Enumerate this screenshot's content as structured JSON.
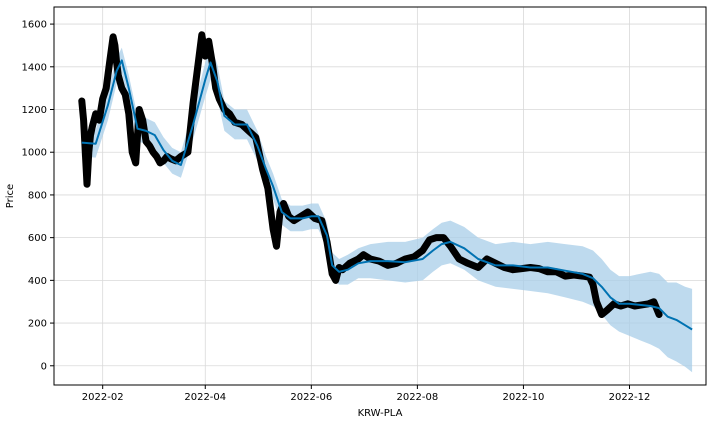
{
  "chart_data": {
    "type": "line",
    "xlabel": "KRW-PLA",
    "ylabel": "Price",
    "x_tick_labels": [
      "2022-02",
      "2022-04",
      "2022-06",
      "2022-08",
      "2022-10",
      "2022-12"
    ],
    "y_tick_labels": [
      "0",
      "200",
      "400",
      "600",
      "800",
      "1000",
      "1200",
      "1400",
      "1600"
    ],
    "xlim": [
      "2022-01-04",
      "2023-01-14"
    ],
    "ylim": [
      -90,
      1680
    ],
    "grid": true,
    "colors": {
      "observed": "#000000",
      "forecast_line": "#0072b2",
      "uncertainty_band": "#a8cde8",
      "grid": "#d9d9d9"
    },
    "observed": {
      "x": [
        "2022-01-20",
        "2022-01-21",
        "2022-01-22",
        "2022-01-23",
        "2022-01-24",
        "2022-01-25",
        "2022-01-26",
        "2022-01-28",
        "2022-01-30",
        "2022-02-01",
        "2022-02-03",
        "2022-02-05",
        "2022-02-07",
        "2022-02-08",
        "2022-02-09",
        "2022-02-10",
        "2022-02-12",
        "2022-02-14",
        "2022-02-16",
        "2022-02-18",
        "2022-02-20",
        "2022-02-22",
        "2022-02-24",
        "2022-02-26",
        "2022-02-28",
        "2022-03-02",
        "2022-03-04",
        "2022-03-06",
        "2022-03-08",
        "2022-03-10",
        "2022-03-12",
        "2022-03-15",
        "2022-03-18",
        "2022-03-22",
        "2022-03-25",
        "2022-03-28",
        "2022-03-30",
        "2022-04-01",
        "2022-04-03",
        "2022-04-05",
        "2022-04-07",
        "2022-04-09",
        "2022-04-12",
        "2022-04-15",
        "2022-04-18",
        "2022-04-22",
        "2022-04-26",
        "2022-04-30",
        "2022-05-04",
        "2022-05-07",
        "2022-05-10",
        "2022-05-12",
        "2022-05-14",
        "2022-05-16",
        "2022-05-19",
        "2022-05-22",
        "2022-05-26",
        "2022-05-30",
        "2022-06-03",
        "2022-06-07",
        "2022-06-10",
        "2022-06-13",
        "2022-06-15",
        "2022-06-17",
        "2022-06-19",
        "2022-06-23",
        "2022-06-28",
        "2022-07-01",
        "2022-07-05",
        "2022-07-10",
        "2022-07-15",
        "2022-07-20",
        "2022-07-25",
        "2022-07-30",
        "2022-08-04",
        "2022-08-08",
        "2022-08-12",
        "2022-08-16",
        "2022-08-20",
        "2022-08-25",
        "2022-08-30",
        "2022-09-05",
        "2022-09-10",
        "2022-09-15",
        "2022-09-20",
        "2022-09-25",
        "2022-09-30",
        "2022-10-05",
        "2022-10-10",
        "2022-10-15",
        "2022-10-20",
        "2022-10-25",
        "2022-10-30",
        "2022-11-04",
        "2022-11-08",
        "2022-11-10",
        "2022-11-12",
        "2022-11-15",
        "2022-11-18",
        "2022-11-22",
        "2022-11-26",
        "2022-11-30",
        "2022-12-04",
        "2022-12-08",
        "2022-12-12",
        "2022-12-15",
        "2022-12-18"
      ],
      "y": [
        1240,
        1150,
        1000,
        850,
        1000,
        1080,
        1120,
        1180,
        1150,
        1250,
        1300,
        1420,
        1540,
        1500,
        1420,
        1360,
        1300,
        1270,
        1180,
        1000,
        950,
        1200,
        1150,
        1050,
        1030,
        1000,
        980,
        950,
        960,
        980,
        970,
        960,
        980,
        1000,
        1230,
        1420,
        1550,
        1450,
        1520,
        1420,
        1300,
        1250,
        1200,
        1180,
        1140,
        1130,
        1100,
        1070,
        920,
        830,
        640,
        560,
        720,
        760,
        700,
        680,
        700,
        720,
        690,
        680,
        580,
        430,
        400,
        460,
        450,
        480,
        500,
        520,
        500,
        490,
        470,
        480,
        500,
        510,
        540,
        590,
        600,
        600,
        560,
        500,
        480,
        460,
        500,
        480,
        460,
        450,
        455,
        460,
        455,
        440,
        440,
        420,
        425,
        420,
        415,
        380,
        300,
        240,
        260,
        290,
        280,
        290,
        280,
        285,
        290,
        300,
        240
      ]
    },
    "forecast": {
      "x": [
        "2022-01-20",
        "2022-01-28",
        "2022-02-04",
        "2022-02-09",
        "2022-02-12",
        "2022-02-16",
        "2022-02-21",
        "2022-02-26",
        "2022-03-03",
        "2022-03-08",
        "2022-03-13",
        "2022-03-18",
        "2022-03-25",
        "2022-04-01",
        "2022-04-04",
        "2022-04-08",
        "2022-04-12",
        "2022-04-18",
        "2022-04-25",
        "2022-05-01",
        "2022-05-06",
        "2022-05-10",
        "2022-05-15",
        "2022-05-20",
        "2022-05-27",
        "2022-06-01",
        "2022-06-05",
        "2022-06-10",
        "2022-06-13",
        "2022-06-17",
        "2022-06-22",
        "2022-06-28",
        "2022-07-05",
        "2022-07-15",
        "2022-07-25",
        "2022-08-04",
        "2022-08-10",
        "2022-08-15",
        "2022-08-20",
        "2022-08-28",
        "2022-09-05",
        "2022-09-15",
        "2022-09-25",
        "2022-10-05",
        "2022-10-15",
        "2022-10-25",
        "2022-11-04",
        "2022-11-10",
        "2022-11-15",
        "2022-11-20",
        "2022-11-25",
        "2022-12-01",
        "2022-12-07",
        "2022-12-13",
        "2022-12-18",
        "2022-12-23",
        "2022-12-28",
        "2023-01-02",
        "2023-01-06"
      ],
      "y": [
        1045,
        1040,
        1220,
        1380,
        1430,
        1300,
        1110,
        1100,
        1080,
        1010,
        960,
        940,
        1130,
        1340,
        1420,
        1330,
        1170,
        1130,
        1130,
        1030,
        920,
        840,
        720,
        690,
        690,
        700,
        700,
        610,
        470,
        440,
        450,
        480,
        490,
        490,
        485,
        500,
        540,
        570,
        580,
        550,
        500,
        470,
        470,
        460,
        460,
        445,
        430,
        410,
        370,
        320,
        290,
        290,
        285,
        280,
        270,
        230,
        215,
        190,
        170
      ],
      "lower": [
        980,
        975,
        1150,
        1320,
        1370,
        1240,
        1050,
        1040,
        1020,
        950,
        900,
        880,
        1060,
        1260,
        1340,
        1250,
        1100,
        1060,
        1060,
        960,
        860,
        780,
        660,
        630,
        630,
        640,
        640,
        550,
        410,
        380,
        380,
        410,
        410,
        400,
        390,
        400,
        440,
        470,
        480,
        450,
        400,
        370,
        360,
        350,
        340,
        320,
        300,
        280,
        240,
        190,
        160,
        140,
        120,
        100,
        80,
        40,
        20,
        -5,
        -30
      ],
      "upper": [
        1110,
        1105,
        1290,
        1440,
        1490,
        1360,
        1170,
        1160,
        1140,
        1070,
        1020,
        1000,
        1200,
        1420,
        1500,
        1410,
        1240,
        1200,
        1200,
        1100,
        980,
        900,
        780,
        750,
        750,
        760,
        760,
        670,
        530,
        500,
        520,
        550,
        570,
        580,
        580,
        600,
        640,
        670,
        680,
        650,
        600,
        570,
        580,
        570,
        580,
        570,
        560,
        540,
        500,
        450,
        420,
        420,
        430,
        440,
        430,
        390,
        390,
        370,
        360
      ]
    }
  }
}
